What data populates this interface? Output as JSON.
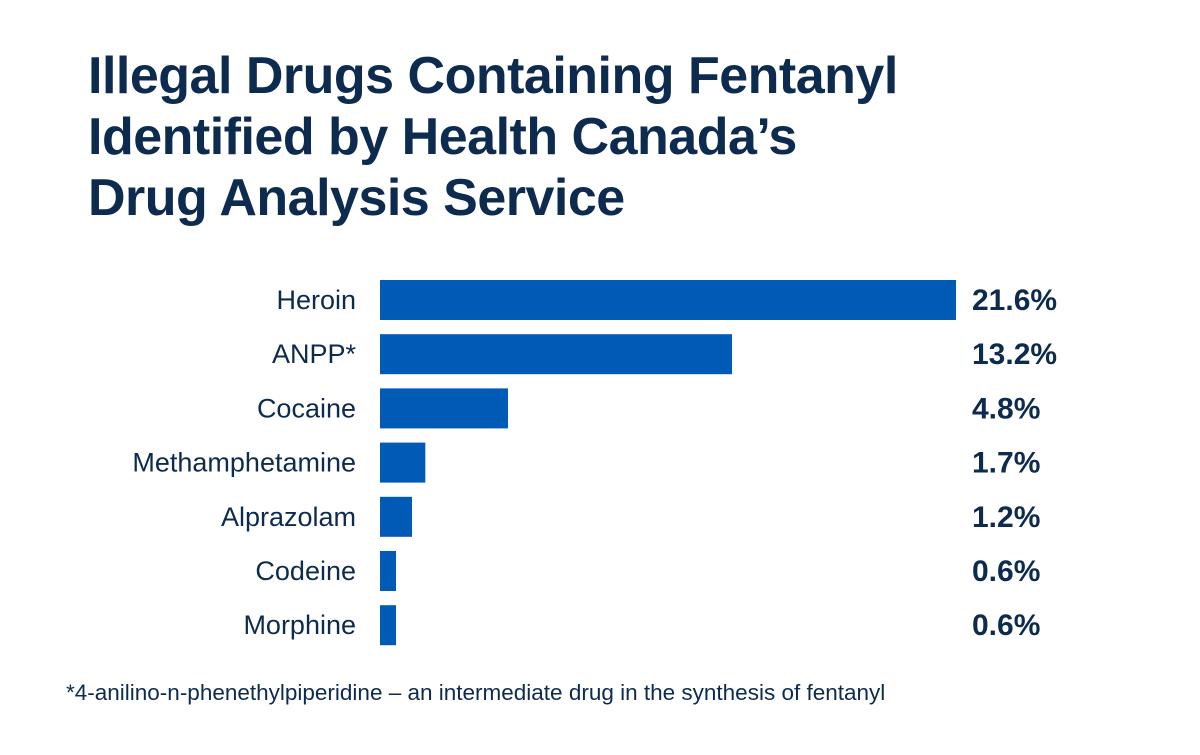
{
  "title_lines": [
    "Illegal Drugs Containing Fentanyl",
    "Identified by Health Canada’s",
    "Drug Analysis Service"
  ],
  "footnote": "*4-anilino-n-phenethylpiperidine – an intermediate drug in the synthesis of fentanyl",
  "colors": {
    "bar": "#005ab6",
    "text": "#0d2a4f",
    "background": "#ffffff"
  },
  "chart_data": {
    "type": "bar",
    "orientation": "horizontal",
    "title": "Illegal Drugs Containing Fentanyl Identified by Health Canada’s Drug Analysis Service",
    "categories": [
      "Heroin",
      "ANPP*",
      "Cocaine",
      "Methamphetamine",
      "Alprazolam",
      "Codeine",
      "Morphine"
    ],
    "values": [
      21.6,
      13.2,
      4.8,
      1.7,
      1.2,
      0.6,
      0.6
    ],
    "value_labels": [
      "21.6%",
      "13.2%",
      "4.8%",
      "1.7%",
      "1.2%",
      "0.6%",
      "0.6%"
    ],
    "unit": "%",
    "xlim": [
      0,
      21.6
    ],
    "grid": false,
    "legend": "none"
  }
}
